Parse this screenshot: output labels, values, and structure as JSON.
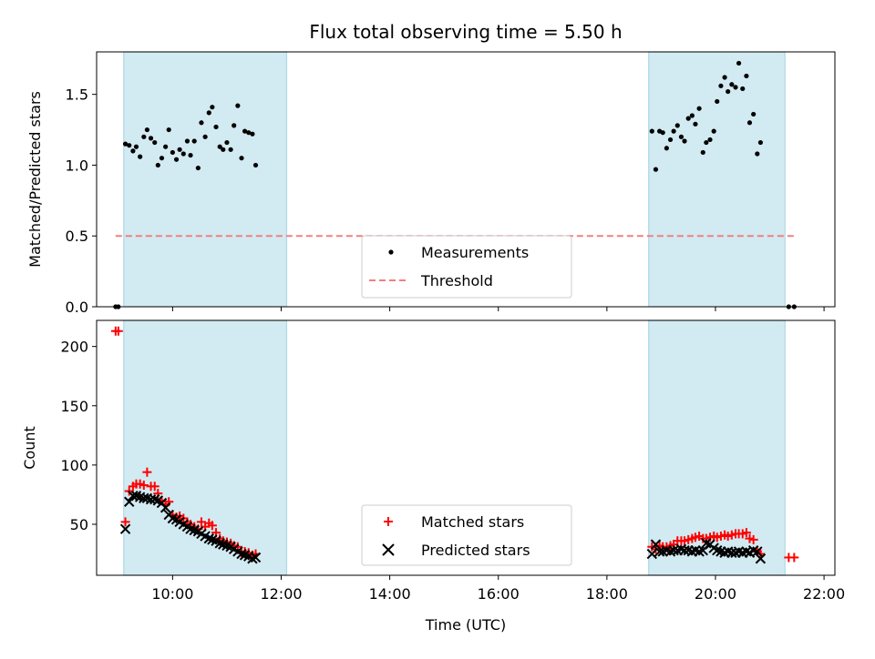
{
  "chart_data": {
    "title": "Flux total observing time = 5.50 h",
    "xlabel": "Time (UTC)",
    "x_ticks": [
      "10:00",
      "12:00",
      "14:00",
      "16:00",
      "18:00",
      "20:00",
      "22:00"
    ],
    "x_tick_hours": [
      10,
      12,
      14,
      16,
      18,
      20,
      22
    ],
    "xlim_hours": [
      8.6,
      22.2
    ],
    "shaded_intervals_hours": [
      [
        9.1,
        12.1
      ],
      [
        18.77,
        21.28
      ]
    ],
    "shade_color": "#add8e6",
    "panels": [
      {
        "id": "ratio",
        "type": "scatter",
        "ylabel": "Matched/Predicted stars",
        "ylim": [
          0,
          1.8
        ],
        "y_ticks": [
          0.0,
          0.5,
          1.0,
          1.5
        ],
        "y_tick_labels": [
          "0.0",
          "0.5",
          "1.0",
          "1.5"
        ],
        "legend_position": "lower-center",
        "series": [
          {
            "name": "Measurements",
            "marker": "dot",
            "color": "#000000",
            "points": [
              [
                8.95,
                0.0
              ],
              [
                9.0,
                0.0
              ],
              [
                9.13,
                1.15
              ],
              [
                9.2,
                1.14
              ],
              [
                9.27,
                1.1
              ],
              [
                9.33,
                1.13
              ],
              [
                9.4,
                1.06
              ],
              [
                9.47,
                1.2
              ],
              [
                9.53,
                1.25
              ],
              [
                9.6,
                1.19
              ],
              [
                9.67,
                1.16
              ],
              [
                9.73,
                1.0
              ],
              [
                9.8,
                1.05
              ],
              [
                9.87,
                1.13
              ],
              [
                9.93,
                1.25
              ],
              [
                10.0,
                1.09
              ],
              [
                10.07,
                1.04
              ],
              [
                10.13,
                1.11
              ],
              [
                10.2,
                1.08
              ],
              [
                10.27,
                1.17
              ],
              [
                10.33,
                1.07
              ],
              [
                10.4,
                1.17
              ],
              [
                10.47,
                0.98
              ],
              [
                10.53,
                1.3
              ],
              [
                10.6,
                1.2
              ],
              [
                10.67,
                1.37
              ],
              [
                10.73,
                1.41
              ],
              [
                10.8,
                1.27
              ],
              [
                10.87,
                1.13
              ],
              [
                10.93,
                1.11
              ],
              [
                11.0,
                1.16
              ],
              [
                11.07,
                1.11
              ],
              [
                11.13,
                1.28
              ],
              [
                11.2,
                1.42
              ],
              [
                11.27,
                1.05
              ],
              [
                11.33,
                1.24
              ],
              [
                11.4,
                1.23
              ],
              [
                11.47,
                1.22
              ],
              [
                11.53,
                1.0
              ],
              [
                18.83,
                1.24
              ],
              [
                18.9,
                0.97
              ],
              [
                18.97,
                1.24
              ],
              [
                19.03,
                1.23
              ],
              [
                19.1,
                1.12
              ],
              [
                19.17,
                1.18
              ],
              [
                19.23,
                1.24
              ],
              [
                19.3,
                1.28
              ],
              [
                19.37,
                1.2
              ],
              [
                19.43,
                1.17
              ],
              [
                19.5,
                1.33
              ],
              [
                19.57,
                1.35
              ],
              [
                19.63,
                1.29
              ],
              [
                19.7,
                1.4
              ],
              [
                19.77,
                1.09
              ],
              [
                19.83,
                1.16
              ],
              [
                19.9,
                1.18
              ],
              [
                19.97,
                1.24
              ],
              [
                20.03,
                1.45
              ],
              [
                20.1,
                1.56
              ],
              [
                20.17,
                1.62
              ],
              [
                20.23,
                1.52
              ],
              [
                20.3,
                1.57
              ],
              [
                20.37,
                1.55
              ],
              [
                20.43,
                1.72
              ],
              [
                20.5,
                1.54
              ],
              [
                20.57,
                1.63
              ],
              [
                20.63,
                1.3
              ],
              [
                20.7,
                1.36
              ],
              [
                20.77,
                1.08
              ],
              [
                20.83,
                1.16
              ],
              [
                21.35,
                0.0
              ],
              [
                21.45,
                0.0
              ]
            ]
          },
          {
            "name": "Threshold",
            "line_style": "dashed",
            "color": "#f08080",
            "x": [
              8.95,
              21.5
            ],
            "y": [
              0.5,
              0.5
            ]
          }
        ]
      },
      {
        "id": "counts",
        "type": "scatter",
        "ylabel": "Count",
        "ylim": [
          7,
          222
        ],
        "y_ticks": [
          50,
          100,
          150,
          200
        ],
        "y_tick_labels": [
          "50",
          "100",
          "150",
          "200"
        ],
        "legend_position": "lower-center",
        "series": [
          {
            "name": "Matched stars",
            "marker": "plus",
            "color": "#ff0000",
            "points": [
              [
                8.95,
                213
              ],
              [
                9.0,
                213
              ],
              [
                9.13,
                52
              ],
              [
                9.2,
                78
              ],
              [
                9.27,
                82
              ],
              [
                9.33,
                84
              ],
              [
                9.4,
                84
              ],
              [
                9.47,
                83
              ],
              [
                9.53,
                94
              ],
              [
                9.6,
                82
              ],
              [
                9.67,
                82
              ],
              [
                9.73,
                76
              ],
              [
                9.8,
                70
              ],
              [
                9.87,
                67
              ],
              [
                9.93,
                69
              ],
              [
                10.0,
                58
              ],
              [
                10.07,
                56
              ],
              [
                10.13,
                57
              ],
              [
                10.2,
                55
              ],
              [
                10.27,
                52
              ],
              [
                10.33,
                50
              ],
              [
                10.4,
                48
              ],
              [
                10.47,
                46
              ],
              [
                10.53,
                52
              ],
              [
                10.6,
                48
              ],
              [
                10.67,
                51
              ],
              [
                10.73,
                49
              ],
              [
                10.8,
                43
              ],
              [
                10.87,
                38
              ],
              [
                10.93,
                36
              ],
              [
                11.0,
                35
              ],
              [
                11.07,
                34
              ],
              [
                11.13,
                32
              ],
              [
                11.2,
                31
              ],
              [
                11.27,
                26
              ],
              [
                11.33,
                27
              ],
              [
                11.4,
                26
              ],
              [
                11.47,
                24
              ],
              [
                11.53,
                25
              ],
              [
                18.83,
                31
              ],
              [
                18.9,
                29
              ],
              [
                18.97,
                32
              ],
              [
                19.03,
                31
              ],
              [
                19.1,
                31
              ],
              [
                19.17,
                32
              ],
              [
                19.23,
                33
              ],
              [
                19.3,
                36
              ],
              [
                19.37,
                36
              ],
              [
                19.43,
                36
              ],
              [
                19.5,
                37
              ],
              [
                19.57,
                38
              ],
              [
                19.63,
                39
              ],
              [
                19.7,
                40
              ],
              [
                19.77,
                38
              ],
              [
                19.83,
                38
              ],
              [
                19.9,
                39
              ],
              [
                19.97,
                40
              ],
              [
                20.03,
                39
              ],
              [
                20.1,
                40
              ],
              [
                20.17,
                41
              ],
              [
                20.23,
                40
              ],
              [
                20.3,
                41
              ],
              [
                20.37,
                42
              ],
              [
                20.43,
                42
              ],
              [
                20.5,
                42
              ],
              [
                20.57,
                43
              ],
              [
                20.63,
                38
              ],
              [
                20.7,
                37
              ],
              [
                20.77,
                27
              ],
              [
                20.83,
                25
              ],
              [
                21.35,
                22
              ],
              [
                21.45,
                22
              ]
            ]
          },
          {
            "name": "Predicted stars",
            "marker": "x",
            "color": "#000000",
            "points": [
              [
                9.13,
                46
              ],
              [
                9.2,
                69
              ],
              [
                9.27,
                74
              ],
              [
                9.33,
                74
              ],
              [
                9.4,
                73
              ],
              [
                9.47,
                72
              ],
              [
                9.53,
                72
              ],
              [
                9.6,
                71
              ],
              [
                9.67,
                71
              ],
              [
                9.73,
                70
              ],
              [
                9.8,
                68
              ],
              [
                9.87,
                64
              ],
              [
                9.93,
                58
              ],
              [
                10.0,
                55
              ],
              [
                10.07,
                54
              ],
              [
                10.13,
                52
              ],
              [
                10.2,
                50
              ],
              [
                10.27,
                48
              ],
              [
                10.33,
                46
              ],
              [
                10.4,
                45
              ],
              [
                10.47,
                44
              ],
              [
                10.53,
                42
              ],
              [
                10.6,
                40
              ],
              [
                10.67,
                38
              ],
              [
                10.73,
                37
              ],
              [
                10.8,
                36
              ],
              [
                10.87,
                34
              ],
              [
                10.93,
                33
              ],
              [
                11.0,
                32
              ],
              [
                11.07,
                31
              ],
              [
                11.13,
                29
              ],
              [
                11.2,
                27
              ],
              [
                11.27,
                25
              ],
              [
                11.33,
                24
              ],
              [
                11.4,
                23
              ],
              [
                11.47,
                21
              ],
              [
                11.53,
                22
              ],
              [
                18.83,
                25
              ],
              [
                18.9,
                33
              ],
              [
                18.97,
                27
              ],
              [
                19.03,
                27
              ],
              [
                19.1,
                28
              ],
              [
                19.17,
                27
              ],
              [
                19.23,
                28
              ],
              [
                19.3,
                28
              ],
              [
                19.37,
                29
              ],
              [
                19.43,
                28
              ],
              [
                19.5,
                28
              ],
              [
                19.57,
                27
              ],
              [
                19.63,
                28
              ],
              [
                19.7,
                27
              ],
              [
                19.77,
                28
              ],
              [
                19.83,
                34
              ],
              [
                19.9,
                33
              ],
              [
                19.97,
                30
              ],
              [
                20.03,
                28
              ],
              [
                20.1,
                27
              ],
              [
                20.17,
                26
              ],
              [
                20.23,
                27
              ],
              [
                20.3,
                26
              ],
              [
                20.37,
                26
              ],
              [
                20.43,
                27
              ],
              [
                20.5,
                26
              ],
              [
                20.57,
                27
              ],
              [
                20.63,
                26
              ],
              [
                20.7,
                28
              ],
              [
                20.77,
                27
              ],
              [
                20.83,
                21
              ]
            ]
          }
        ]
      }
    ]
  }
}
